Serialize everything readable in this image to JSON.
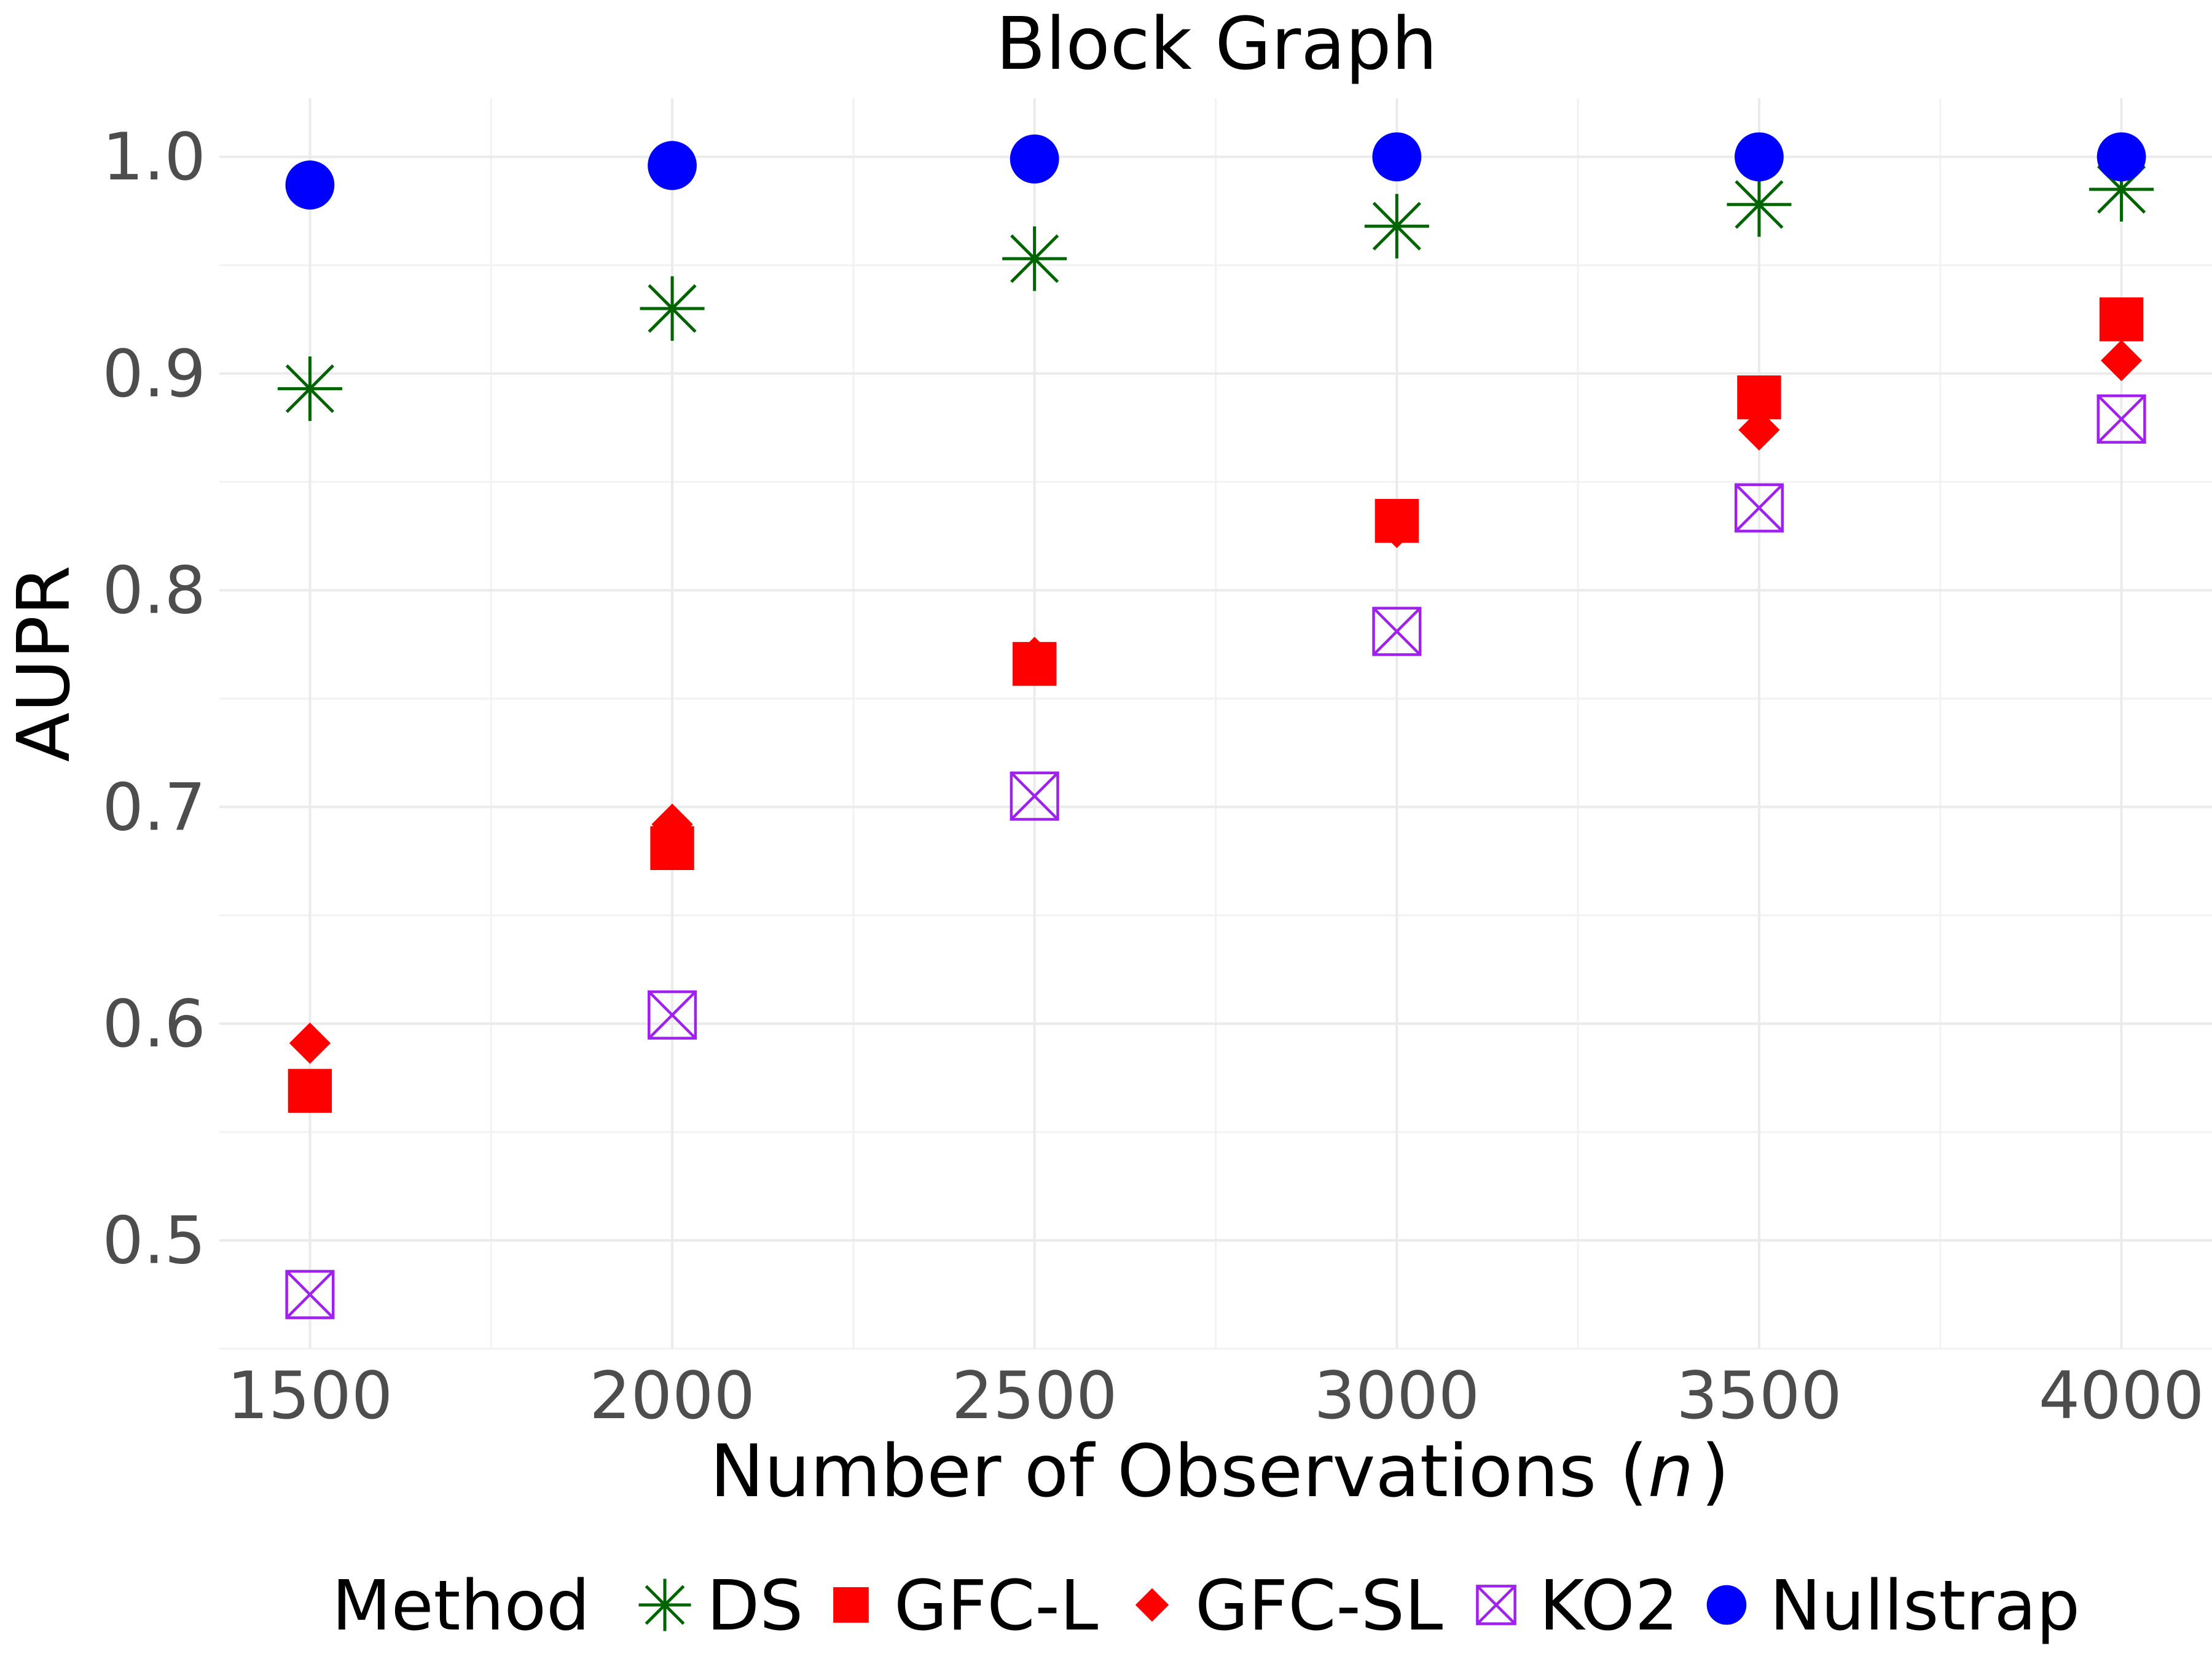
{
  "chart_data": {
    "type": "scatter",
    "title": "Block Graph",
    "xlabel": "Number of Observations (",
    "xlabel_var": "n",
    "xlabel_close": ")",
    "ylabel": "AUPR",
    "x": [
      1500,
      2000,
      2500,
      3000,
      3500,
      4000
    ],
    "x_ticks": [
      "1500",
      "2000",
      "2500",
      "3000",
      "3500",
      "4000"
    ],
    "y_ticks": [
      "0.5",
      "0.6",
      "0.7",
      "0.8",
      "0.9",
      "1.0"
    ],
    "xlim": [
      1375,
      4125
    ],
    "ylim": [
      0.45,
      1.027
    ],
    "grid": true,
    "legend_title": "Method",
    "legend_position": "bottom",
    "series": [
      {
        "name": "DS",
        "marker": "asterisk",
        "color": "#006400",
        "values": [
          0.893,
          0.93,
          0.953,
          0.968,
          0.978,
          0.985
        ]
      },
      {
        "name": "GFC-L",
        "marker": "square",
        "color": "#ff0000",
        "values": [
          0.569,
          0.681,
          0.766,
          0.832,
          0.889,
          0.925
        ]
      },
      {
        "name": "GFC-SL",
        "marker": "diamond",
        "color": "#ff0000",
        "values": [
          0.591,
          0.692,
          0.769,
          0.829,
          0.874,
          0.906
        ]
      },
      {
        "name": "KO2",
        "marker": "boxcross",
        "color": "#a020f0",
        "values": [
          0.475,
          0.604,
          0.705,
          0.781,
          0.838,
          0.879
        ]
      },
      {
        "name": "Nullstrap",
        "marker": "circle",
        "color": "#0000ff",
        "values": [
          0.987,
          0.996,
          0.999,
          1.0,
          1.0,
          1.0
        ]
      }
    ]
  }
}
